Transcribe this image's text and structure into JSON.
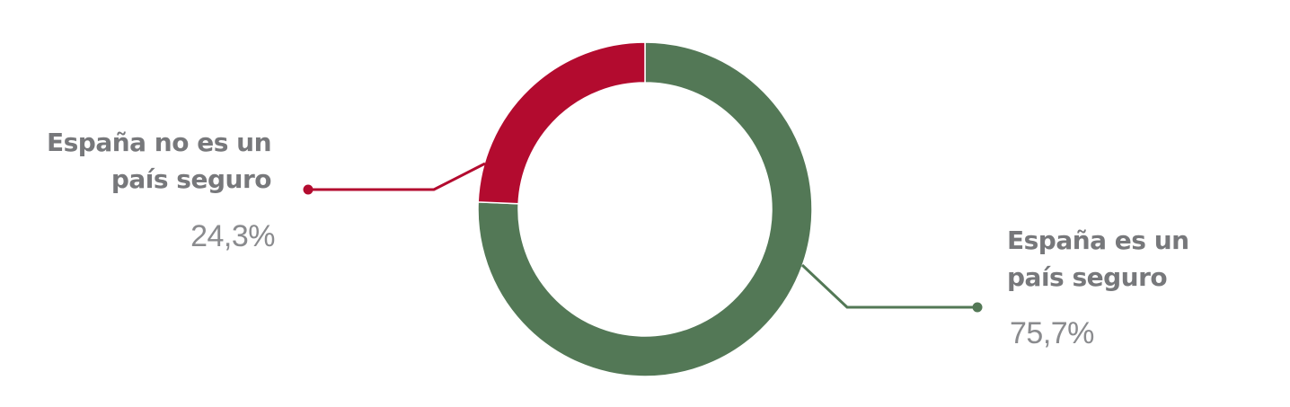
{
  "chart_data": {
    "type": "pie",
    "variant": "donut",
    "slices": [
      {
        "label": "España es un país seguro",
        "value": 75.7,
        "value_label": "75,7%",
        "color": "#537856"
      },
      {
        "label": "España no es un país seguro",
        "value": 24.3,
        "value_label": "24,3%",
        "color": "#b30b2f"
      }
    ],
    "label_lines": [
      {
        "text": "España es un",
        "text2": "país seguro"
      },
      {
        "text": "España no es un",
        "text2": "país seguro"
      }
    ]
  }
}
